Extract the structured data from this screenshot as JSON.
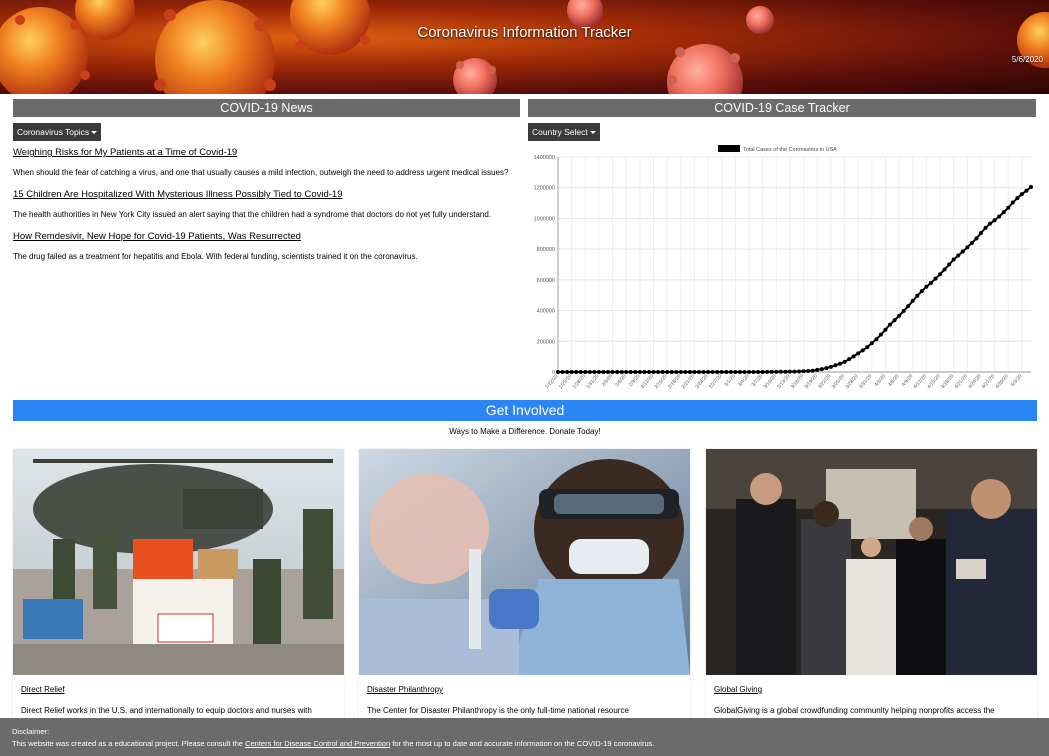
{
  "header": {
    "title": "Coronavirus Information Tracker",
    "date": "5/6/2020"
  },
  "news": {
    "heading": "COVID-19 News",
    "dropdown_label": "Coronavirus Topics",
    "articles": [
      {
        "title": "Weighing Risks for My Patients at a Time of Covid-19",
        "description": "When should the fear of catching a virus, and one that usually causes a mild infection, outweigh the need to address urgent medical issues?"
      },
      {
        "title": "15 Children Are Hospitalized With Mysterious Illness Possibly Tied to Covid-19",
        "description": "The health authorities in New York City issued an alert saying that the children had a syndrome that doctors do not yet fully understand."
      },
      {
        "title": "How Remdesivir, New Hope for Covid-19 Patients, Was Resurrected",
        "description": "The drug failed as a treatment for hepatitis and Ebola. With federal funding, scientists trained it on the coronavirus."
      }
    ]
  },
  "tracker": {
    "heading": "COVID-19 Case Tracker",
    "dropdown_label": "Country Select"
  },
  "chart_data": {
    "type": "line",
    "legend": "Total Cases of the Coronavirus in USA",
    "legend_position": "top",
    "grid": true,
    "ylim": [
      0,
      1400000
    ],
    "yticks": [
      0,
      200000,
      400000,
      600000,
      800000,
      1000000,
      1200000,
      1400000
    ],
    "xtick_labels": [
      "1/22/20",
      "1/25/20",
      "1/28/20",
      "1/31/20",
      "2/3/20",
      "2/6/20",
      "2/9/20",
      "2/12/20",
      "2/15/20",
      "2/18/20",
      "2/21/20",
      "2/24/20",
      "2/27/20",
      "3/1/20",
      "3/4/20",
      "3/7/20",
      "3/10/20",
      "3/13/20",
      "3/16/20",
      "3/19/20",
      "3/22/20",
      "3/25/20",
      "3/28/20",
      "3/31/20",
      "4/3/20",
      "4/6/20",
      "4/9/20",
      "4/12/20",
      "4/15/20",
      "4/18/20",
      "4/21/20",
      "4/24/20",
      "4/27/20",
      "4/30/20",
      "5/3/20"
    ],
    "start_date": "1/22/20",
    "values": [
      1,
      1,
      2,
      2,
      5,
      5,
      5,
      5,
      5,
      7,
      8,
      8,
      11,
      11,
      11,
      11,
      11,
      11,
      11,
      11,
      12,
      12,
      13,
      13,
      13,
      13,
      13,
      13,
      13,
      13,
      15,
      15,
      15,
      51,
      51,
      57,
      58,
      60,
      68,
      74,
      98,
      118,
      149,
      217,
      262,
      402,
      518,
      583,
      959,
      1281,
      1663,
      2179,
      2727,
      3499,
      4632,
      6421,
      7786,
      13680,
      19101,
      25493,
      33276,
      43847,
      53740,
      65778,
      83836,
      101657,
      121465,
      140909,
      161831,
      188172,
      213242,
      243622,
      275367,
      308650,
      336802,
      366317,
      397121,
      428654,
      462780,
      496535,
      526396,
      555313,
      580619,
      607670,
      636350,
      667801,
      699706,
      732197,
      758809,
      784326,
      811865,
      840351,
      869170,
      905358,
      938154,
      965785,
      988197,
      1012582,
      1039909,
      1069424,
      1103461,
      1132539,
      1158040,
      1180375,
      1204351
    ]
  },
  "involved": {
    "heading": "Get Involved",
    "subheading": "Ways to Make a Difference. Donate Today!",
    "cards": [
      {
        "title": "Direct Relief",
        "description": "Direct Relief works in the U.S. and internationally to equip doctors and nurses with"
      },
      {
        "title": "Disaster Philanthropy",
        "description": "The Center for Disaster Philanthropy is the only full-time national resource"
      },
      {
        "title": "Global Giving",
        "description": "GlobalGiving is a global crowdfunding community helping nonprofits access the"
      }
    ]
  },
  "footer": {
    "disclaimer_label": "Disclaimer:",
    "text_before": "This website was created as a educational project. Please consult the",
    "link_text": "Centers for Disease Control and Prevention",
    "text_after": "for the most up to date and accurate information on the COVID-19 coronavirus."
  }
}
